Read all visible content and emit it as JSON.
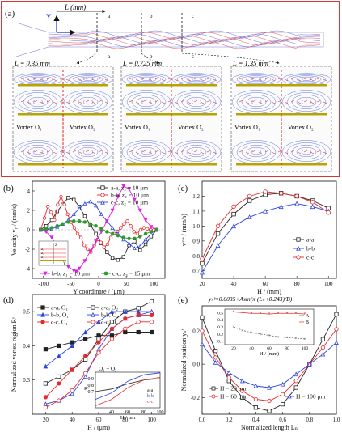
{
  "panel_a": {
    "label": "(a)",
    "axis_y": "Y",
    "axis_l": "L (mm)",
    "section_labels": [
      "a",
      "b",
      "c",
      "a",
      "b",
      "c"
    ],
    "insets": [
      {
        "title": "L = 0.35 mm",
        "left": "Vortex O₁",
        "right": "Vortex O₂"
      },
      {
        "title": "L = 0.725 mm",
        "left": "Vortex O₁",
        "right": "Vortex O₂"
      },
      {
        "title": "L = 1.35 mm",
        "left": "Vortex O₁",
        "right": "Vortex O₂"
      }
    ],
    "colors": {
      "frame": "#d81e1e",
      "stream_red": "#e03030",
      "stream_blue": "#3a4fd8",
      "wall": "#b8a400"
    }
  },
  "chart_data": [
    {
      "panel": "(b)",
      "type": "line",
      "ylabel": "Velocity vᵧ / (mm/s)",
      "xlabel": "Y coordinate / (μm)",
      "xlim": [
        -120,
        120
      ],
      "ylim": [
        -5,
        5
      ],
      "xticks": [
        "-100",
        "-50",
        "0",
        "50",
        "100"
      ],
      "yticks": [
        "-4",
        "-2",
        "0",
        "2",
        "4"
      ],
      "series": [
        {
          "name": "a-a, z₂ = 10 μm",
          "color": "#222222",
          "marker": "square-open",
          "x": [
            -105,
            -95,
            -85,
            -75,
            -65,
            -55,
            -45,
            -35,
            -25,
            -15,
            -5,
            5,
            15,
            25,
            35,
            45,
            55,
            65,
            75,
            85,
            95,
            105
          ],
          "y": [
            0,
            0.4,
            1.0,
            1.9,
            2.6,
            3.3,
            3.1,
            2.4,
            1.4,
            0.5,
            -0.4,
            -1.4,
            -2.3,
            -2.9,
            -3.1,
            -2.8,
            -1.6,
            -1.2,
            -2.1,
            -1.5,
            -0.7,
            0
          ]
        },
        {
          "name": "b-b, z₂ = 10 μm",
          "color": "#e8282a",
          "marker": "circle-open",
          "x": [
            -105,
            -98,
            -92,
            -86,
            -80,
            -74,
            -68,
            -62,
            -56,
            -50,
            -44,
            -38,
            -32,
            -26,
            -20,
            -14,
            -8,
            -2,
            4,
            10,
            16,
            22,
            28,
            34,
            40,
            46,
            52,
            58,
            64,
            70,
            76,
            82,
            88,
            94,
            100,
            105
          ],
          "y": [
            0,
            1.2,
            2.4,
            1.8,
            1.0,
            2.6,
            3.4,
            2.6,
            1.6,
            0.8,
            0.2,
            -0.4,
            -0.8,
            -1.6,
            -2.0,
            -2.3,
            -1.6,
            -1.0,
            -1.3,
            -1.8,
            -1.5,
            -0.8,
            -0.4,
            -0.2,
            0.2,
            0.6,
            0.9,
            0.4,
            -0.2,
            -0.4,
            0,
            0.2,
            0.1,
            0,
            0,
            0
          ]
        },
        {
          "name": "c-c, z₂ = 10 μm",
          "color": "#2b45e0",
          "marker": "triangle-open",
          "x": [
            -105,
            -95,
            -85,
            -75,
            -65,
            -55,
            -45,
            -35,
            -25,
            -15,
            -5,
            5,
            15,
            25,
            35,
            45,
            55,
            65,
            75,
            85,
            95,
            105
          ],
          "y": [
            0,
            0,
            0.1,
            0.3,
            0.6,
            1.0,
            1.6,
            2.2,
            2.7,
            2.9,
            2.5,
            1.6,
            0.9,
            0.2,
            -0.4,
            -1.0,
            -1.4,
            -1.9,
            -1.7,
            -1.0,
            -0.4,
            0
          ]
        },
        {
          "name": "b-b, z₁ = 10 μm",
          "color": "#e020e0",
          "marker": "triangle-down",
          "x": [
            -105,
            -95,
            -85,
            -75,
            -65,
            -55,
            -45,
            -40,
            -35,
            -25,
            -15,
            -5,
            5,
            15,
            25,
            35,
            45,
            55,
            65,
            75,
            85,
            95,
            105
          ],
          "y": [
            0,
            -0.2,
            -0.8,
            -1.8,
            -2.9,
            -3.8,
            -4.2,
            -4.3,
            -4.0,
            -3.2,
            -2.2,
            -1.2,
            -0.2,
            0.9,
            2.0,
            3.4,
            4.5,
            4.2,
            3.1,
            2.0,
            1.0,
            0.3,
            0
          ]
        },
        {
          "name": "c-c, z₃ = 15 μm",
          "color": "#2c9a2c",
          "marker": "circle-filled",
          "x": [
            -105,
            -95,
            -85,
            -75,
            -65,
            -55,
            -45,
            -35,
            -25,
            -15,
            -5,
            5,
            15,
            25,
            35,
            45,
            55,
            65,
            75,
            85,
            95,
            105
          ],
          "y": [
            0,
            0.1,
            0.2,
            0.4,
            0.6,
            0.8,
            0.9,
            0.9,
            0.8,
            0.6,
            0.4,
            0.1,
            -0.2,
            -0.4,
            -0.6,
            -0.8,
            -0.9,
            -0.9,
            -0.7,
            -0.4,
            -0.2,
            0
          ]
        }
      ],
      "inset_labels": [
        "Z",
        "z₃",
        "z₂",
        "z₁",
        "Y"
      ]
    },
    {
      "panel": "(c)",
      "type": "line",
      "ylabel": "vᵃᵛᵉ / (mm/s)",
      "xlabel": "H / (mm)",
      "xlim": [
        20,
        105
      ],
      "ylim": [
        0.65,
        1.3
      ],
      "xticks": [
        "20",
        "40",
        "60",
        "80",
        "100"
      ],
      "yticks": [
        "0.7",
        "0.8",
        "0.9",
        "1.0",
        "1.1",
        "1.2"
      ],
      "series": [
        {
          "name": "a-a",
          "color": "#222222",
          "marker": "square-open",
          "x": [
            20,
            30,
            40,
            50,
            60,
            70,
            80,
            90,
            100
          ],
          "y": [
            0.75,
            0.95,
            1.08,
            1.17,
            1.21,
            1.22,
            1.2,
            1.17,
            1.12
          ]
        },
        {
          "name": "b-b",
          "color": "#2b45e0",
          "marker": "triangle-open",
          "x": [
            20,
            30,
            40,
            50,
            60,
            70,
            80,
            90,
            100
          ],
          "y": [
            0.69,
            0.87,
            1.0,
            1.06,
            1.1,
            1.13,
            1.15,
            1.13,
            1.1
          ]
        },
        {
          "name": "c-c",
          "color": "#e8282a",
          "marker": "circle-open",
          "x": [
            20,
            30,
            40,
            50,
            60,
            70,
            80,
            90,
            100
          ],
          "y": [
            0.78,
            1.0,
            1.13,
            1.2,
            1.23,
            1.22,
            1.2,
            1.16,
            1.09
          ]
        }
      ]
    },
    {
      "panel": "(d)",
      "type": "line",
      "ylabel": "Normalized vortex region Rᵛ",
      "xlabel": "H / (μm)",
      "xlim": [
        10,
        110
      ],
      "ylim": [
        0.2,
        0.55
      ],
      "xticks": [
        "20",
        "40",
        "60",
        "80",
        "100"
      ],
      "yticks": [
        "0.3",
        "0.4",
        "0.5"
      ],
      "series": [
        {
          "name": "a-a, O₁",
          "color": "#222222",
          "marker": "square-filled",
          "x": [
            20,
            30,
            40,
            50,
            60,
            70,
            80,
            90,
            100
          ],
          "y": [
            0.39,
            0.4,
            0.41,
            0.42,
            0.43,
            0.43,
            0.44,
            0.44,
            0.44
          ]
        },
        {
          "name": "a-a, O₂",
          "color": "#222222",
          "marker": "square-open",
          "x": [
            20,
            30,
            40,
            50,
            60,
            70,
            80,
            90,
            100
          ],
          "y": [
            0.29,
            0.31,
            0.33,
            0.36,
            0.42,
            0.47,
            0.5,
            0.51,
            0.53
          ]
        },
        {
          "name": "b-b, O₁",
          "color": "#2b45e0",
          "marker": "triangle-filled",
          "x": [
            20,
            30,
            40,
            50,
            60,
            70,
            80,
            90,
            100
          ],
          "y": [
            0.34,
            0.37,
            0.4,
            0.44,
            0.47,
            0.5,
            0.5,
            0.5,
            0.5
          ]
        },
        {
          "name": "b-b, O₂",
          "color": "#2b45e0",
          "marker": "triangle-open",
          "x": [
            20,
            30,
            40,
            50,
            60,
            70,
            80,
            90,
            100
          ],
          "y": [
            0.23,
            0.24,
            0.26,
            0.31,
            0.39,
            0.45,
            0.48,
            0.49,
            0.5
          ]
        },
        {
          "name": "c-c, O₁",
          "color": "#e8282a",
          "marker": "circle-filled",
          "x": [
            20,
            30,
            40,
            50,
            60,
            70,
            80,
            90,
            100
          ],
          "y": [
            0.25,
            0.29,
            0.33,
            0.37,
            0.41,
            0.45,
            0.48,
            0.49,
            0.49
          ]
        },
        {
          "name": "c-c, O₂",
          "color": "#e8282a",
          "marker": "circle-open",
          "x": [
            20,
            30,
            40,
            50,
            60,
            70,
            80,
            90,
            100
          ],
          "y": [
            0.22,
            0.24,
            0.27,
            0.32,
            0.38,
            0.42,
            0.45,
            0.47,
            0.47
          ]
        }
      ],
      "inset": {
        "title": "O₁ + O₂",
        "ylabel": "Rᵛ",
        "xlabel": "H / μm",
        "yticks": [
          "0.7",
          "0.8",
          "0.9"
        ],
        "xticks": [
          "40",
          "60",
          "80",
          "100"
        ],
        "series": [
          {
            "name": "a-a",
            "color": "#222222",
            "x": [
              20,
              40,
              60,
              80,
              100
            ],
            "y": [
              0.7,
              0.74,
              0.82,
              0.88,
              0.9
            ]
          },
          {
            "name": "b-b",
            "color": "#2b45e0",
            "x": [
              20,
              40,
              60,
              80,
              100
            ],
            "y": [
              0.58,
              0.68,
              0.86,
              0.96,
              0.99
            ]
          },
          {
            "name": "c-c",
            "color": "#e8282a",
            "x": [
              20,
              40,
              60,
              80,
              100
            ],
            "y": [
              0.48,
              0.58,
              0.76,
              0.88,
              0.92
            ]
          }
        ]
      }
    },
    {
      "panel": "(e)",
      "type": "line",
      "annotation": "yₙᶠ=0.0035+Asin(π (Lₙ+0.243)/B)",
      "ylabel": "Normalized position yₙᶠ",
      "xlabel": "Normalized length Lₙ",
      "xlim": [
        0,
        1.0
      ],
      "ylim": [
        -0.3,
        0.35
      ],
      "xticks": [
        "0.0",
        "0.2",
        "0.4",
        "0.6",
        "0.8",
        "1.0"
      ],
      "yticks": [
        "-0.2",
        "0.0",
        "0.2"
      ],
      "series": [
        {
          "name": "H = 20 μm",
          "color": "#222222",
          "marker": "square-open",
          "x": [
            0,
            0.1,
            0.2,
            0.3,
            0.4,
            0.5,
            0.6,
            0.7,
            0.8,
            0.9,
            1.0
          ],
          "y": [
            0.28,
            0.08,
            -0.1,
            -0.2,
            -0.26,
            -0.28,
            -0.24,
            -0.14,
            0.0,
            0.15,
            0.3
          ]
        },
        {
          "name": "H = 60 μm",
          "color": "#e8282a",
          "marker": "circle-open",
          "x": [
            0,
            0.1,
            0.2,
            0.3,
            0.4,
            0.5,
            0.6,
            0.7,
            0.8,
            0.9,
            1.0
          ],
          "y": [
            0.2,
            0.04,
            -0.08,
            -0.16,
            -0.21,
            -0.22,
            -0.18,
            -0.1,
            0.0,
            0.1,
            0.21
          ]
        },
        {
          "name": "H = 100 μm",
          "color": "#2b45e0",
          "marker": "triangle-open",
          "x": [
            0,
            0.1,
            0.2,
            0.3,
            0.4,
            0.5,
            0.6,
            0.7,
            0.8,
            0.9,
            1.0
          ],
          "y": [
            0.12,
            0.01,
            -0.05,
            -0.1,
            -0.13,
            -0.14,
            -0.12,
            -0.06,
            0.0,
            0.06,
            0.13
          ]
        }
      ],
      "inset": {
        "ylabel": "",
        "xlabel": "H / (mm)",
        "yticks": [
          "0.1",
          "0.2",
          "0.3",
          "0.4",
          "0.5"
        ],
        "xticks": [
          "20",
          "40",
          "60",
          "80",
          "100"
        ],
        "series": [
          {
            "name": "A",
            "color": "#555555",
            "x": [
              20,
              30,
              40,
              50,
              60,
              70,
              80,
              90,
              100
            ],
            "y": [
              0.3,
              0.25,
              0.22,
              0.2,
              0.18,
              0.16,
              0.15,
              0.14,
              0.13
            ]
          },
          {
            "name": "B",
            "color": "#e8282a",
            "x": [
              20,
              30,
              40,
              50,
              60,
              70,
              80,
              90,
              100
            ],
            "y": [
              0.51,
              0.5,
              0.49,
              0.49,
              0.48,
              0.49,
              0.49,
              0.49,
              0.48
            ]
          }
        ]
      }
    }
  ]
}
